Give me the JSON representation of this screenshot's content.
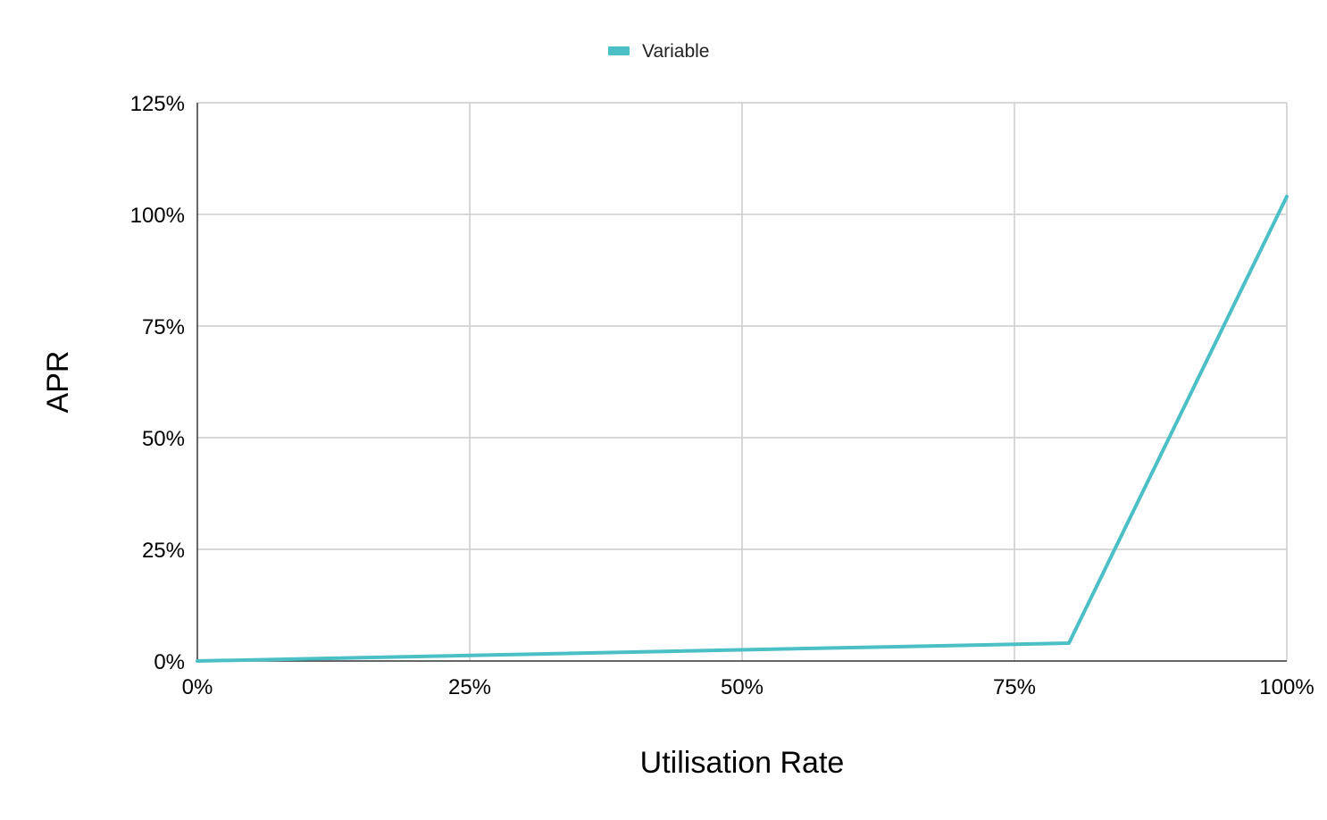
{
  "chart_data": {
    "type": "line",
    "title": "",
    "xlabel": "Utilisation Rate",
    "ylabel": "APR",
    "xlim": [
      0,
      100
    ],
    "ylim": [
      0,
      125
    ],
    "x_ticks": [
      0,
      25,
      50,
      75,
      100
    ],
    "y_ticks": [
      0,
      25,
      50,
      75,
      100,
      125
    ],
    "x_tick_labels": [
      "0%",
      "25%",
      "50%",
      "75%",
      "100%"
    ],
    "y_tick_labels": [
      "0%",
      "25%",
      "50%",
      "75%",
      "100%",
      "125%"
    ],
    "grid": true,
    "legend_position": "top-center",
    "series": [
      {
        "name": "Variable",
        "color": "#4bbfc6",
        "x": [
          0,
          80,
          100
        ],
        "y": [
          0,
          4,
          104
        ]
      }
    ]
  }
}
